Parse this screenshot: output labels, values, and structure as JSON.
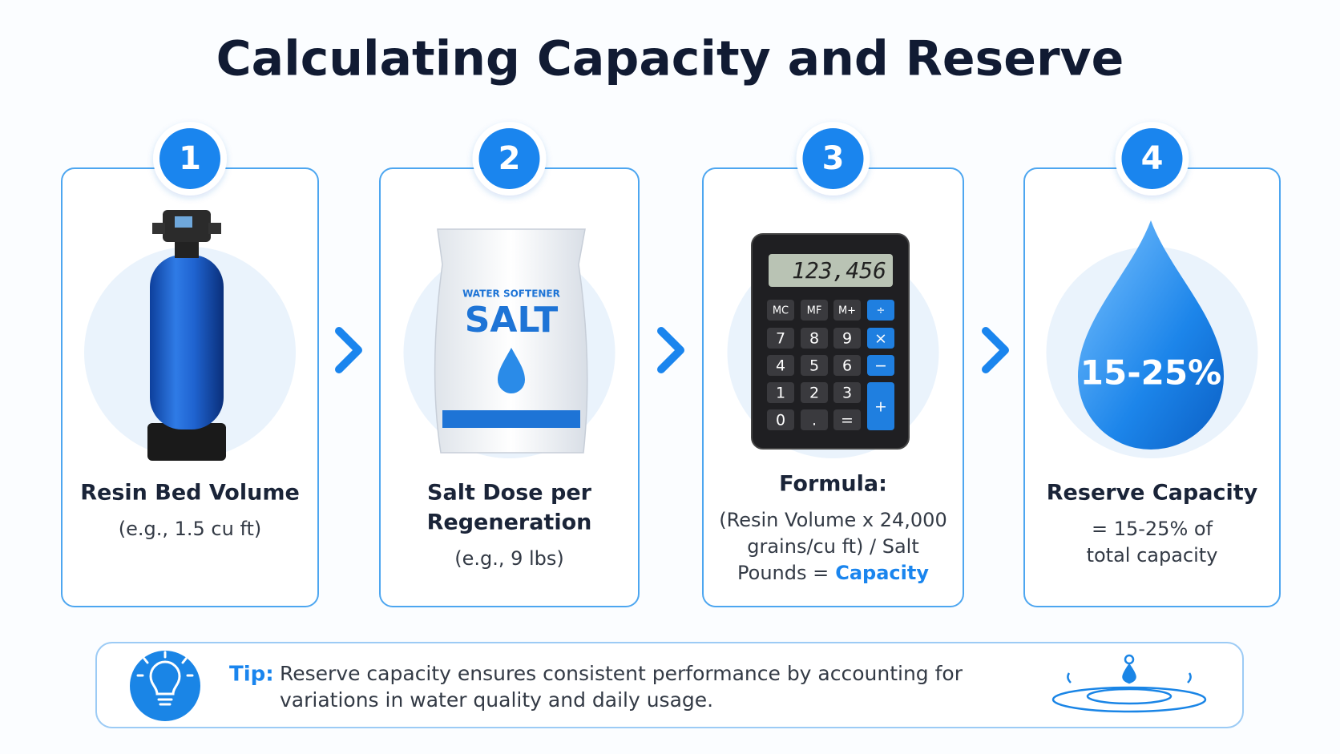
{
  "title": "Calculating Capacity and Reserve",
  "steps": [
    {
      "number": "1",
      "title_lines": [
        "Resin Bed Volume"
      ],
      "detail_lines": [
        "(e.g., 1.5 cu ft)"
      ]
    },
    {
      "number": "2",
      "title_lines": [
        "Salt Dose per",
        "Regeneration"
      ],
      "detail_lines": [
        "(e.g., 9 lbs)"
      ],
      "bag": {
        "brand": "WATER SOFTENER",
        "product": "SALT"
      }
    },
    {
      "number": "3",
      "title_lines": [
        "Formula:"
      ],
      "detail_lines": [
        "(Resin Volume x 24,000",
        "grains/cu ft) / Salt",
        "Pounds ="
      ],
      "highlight": "Capacity",
      "display": "123,456",
      "keys": [
        "MC",
        "MF",
        "M+",
        "÷",
        "7",
        "8",
        "9",
        "×",
        "4",
        "5",
        "6",
        "−",
        "1",
        "2",
        "3",
        "+",
        "0",
        ".",
        "="
      ]
    },
    {
      "number": "4",
      "title_lines": [
        "Reserve Capacity"
      ],
      "detail_lines": [
        "= 15-25% of",
        "total capacity"
      ],
      "drop_label": "15-25%"
    }
  ],
  "tip": {
    "label": "Tip:",
    "lines": [
      "Reserve capacity ensures consistent performance by accounting for",
      "variations in water quality and daily usage."
    ]
  }
}
